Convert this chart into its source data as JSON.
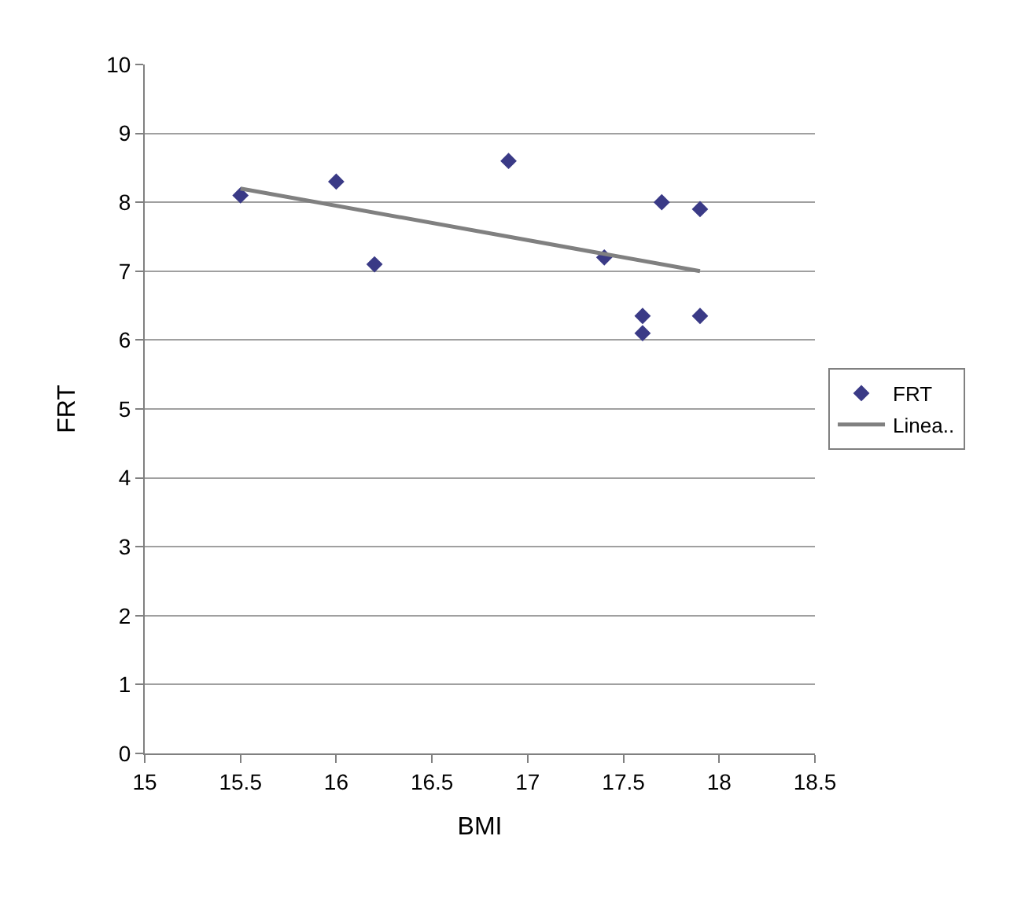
{
  "chart_data": {
    "type": "scatter",
    "xlabel": "BMI",
    "ylabel": "FRT",
    "xlim": [
      15,
      18.5
    ],
    "xticks": [
      15,
      15.5,
      16,
      16.5,
      17,
      17.5,
      18,
      18.5
    ],
    "ylim": [
      0,
      10
    ],
    "yticks": [
      0,
      1,
      2,
      3,
      4,
      5,
      6,
      7,
      8,
      9,
      10
    ],
    "grid": "y",
    "legend": "right",
    "series": [
      {
        "name": "FRT",
        "marker": "diamond",
        "color": "#3a3a86",
        "x": [
          15.5,
          16.0,
          16.2,
          16.9,
          17.4,
          17.6,
          17.6,
          17.7,
          17.9,
          17.9
        ],
        "values": [
          8.1,
          8.3,
          7.1,
          8.6,
          7.2,
          6.35,
          6.1,
          8.0,
          7.9,
          6.35
        ]
      },
      {
        "name": "Linea..",
        "type": "line",
        "marker": "none",
        "color": "#808080",
        "x": [
          15.5,
          17.9
        ],
        "values": [
          8.2,
          7.0
        ]
      }
    ]
  }
}
